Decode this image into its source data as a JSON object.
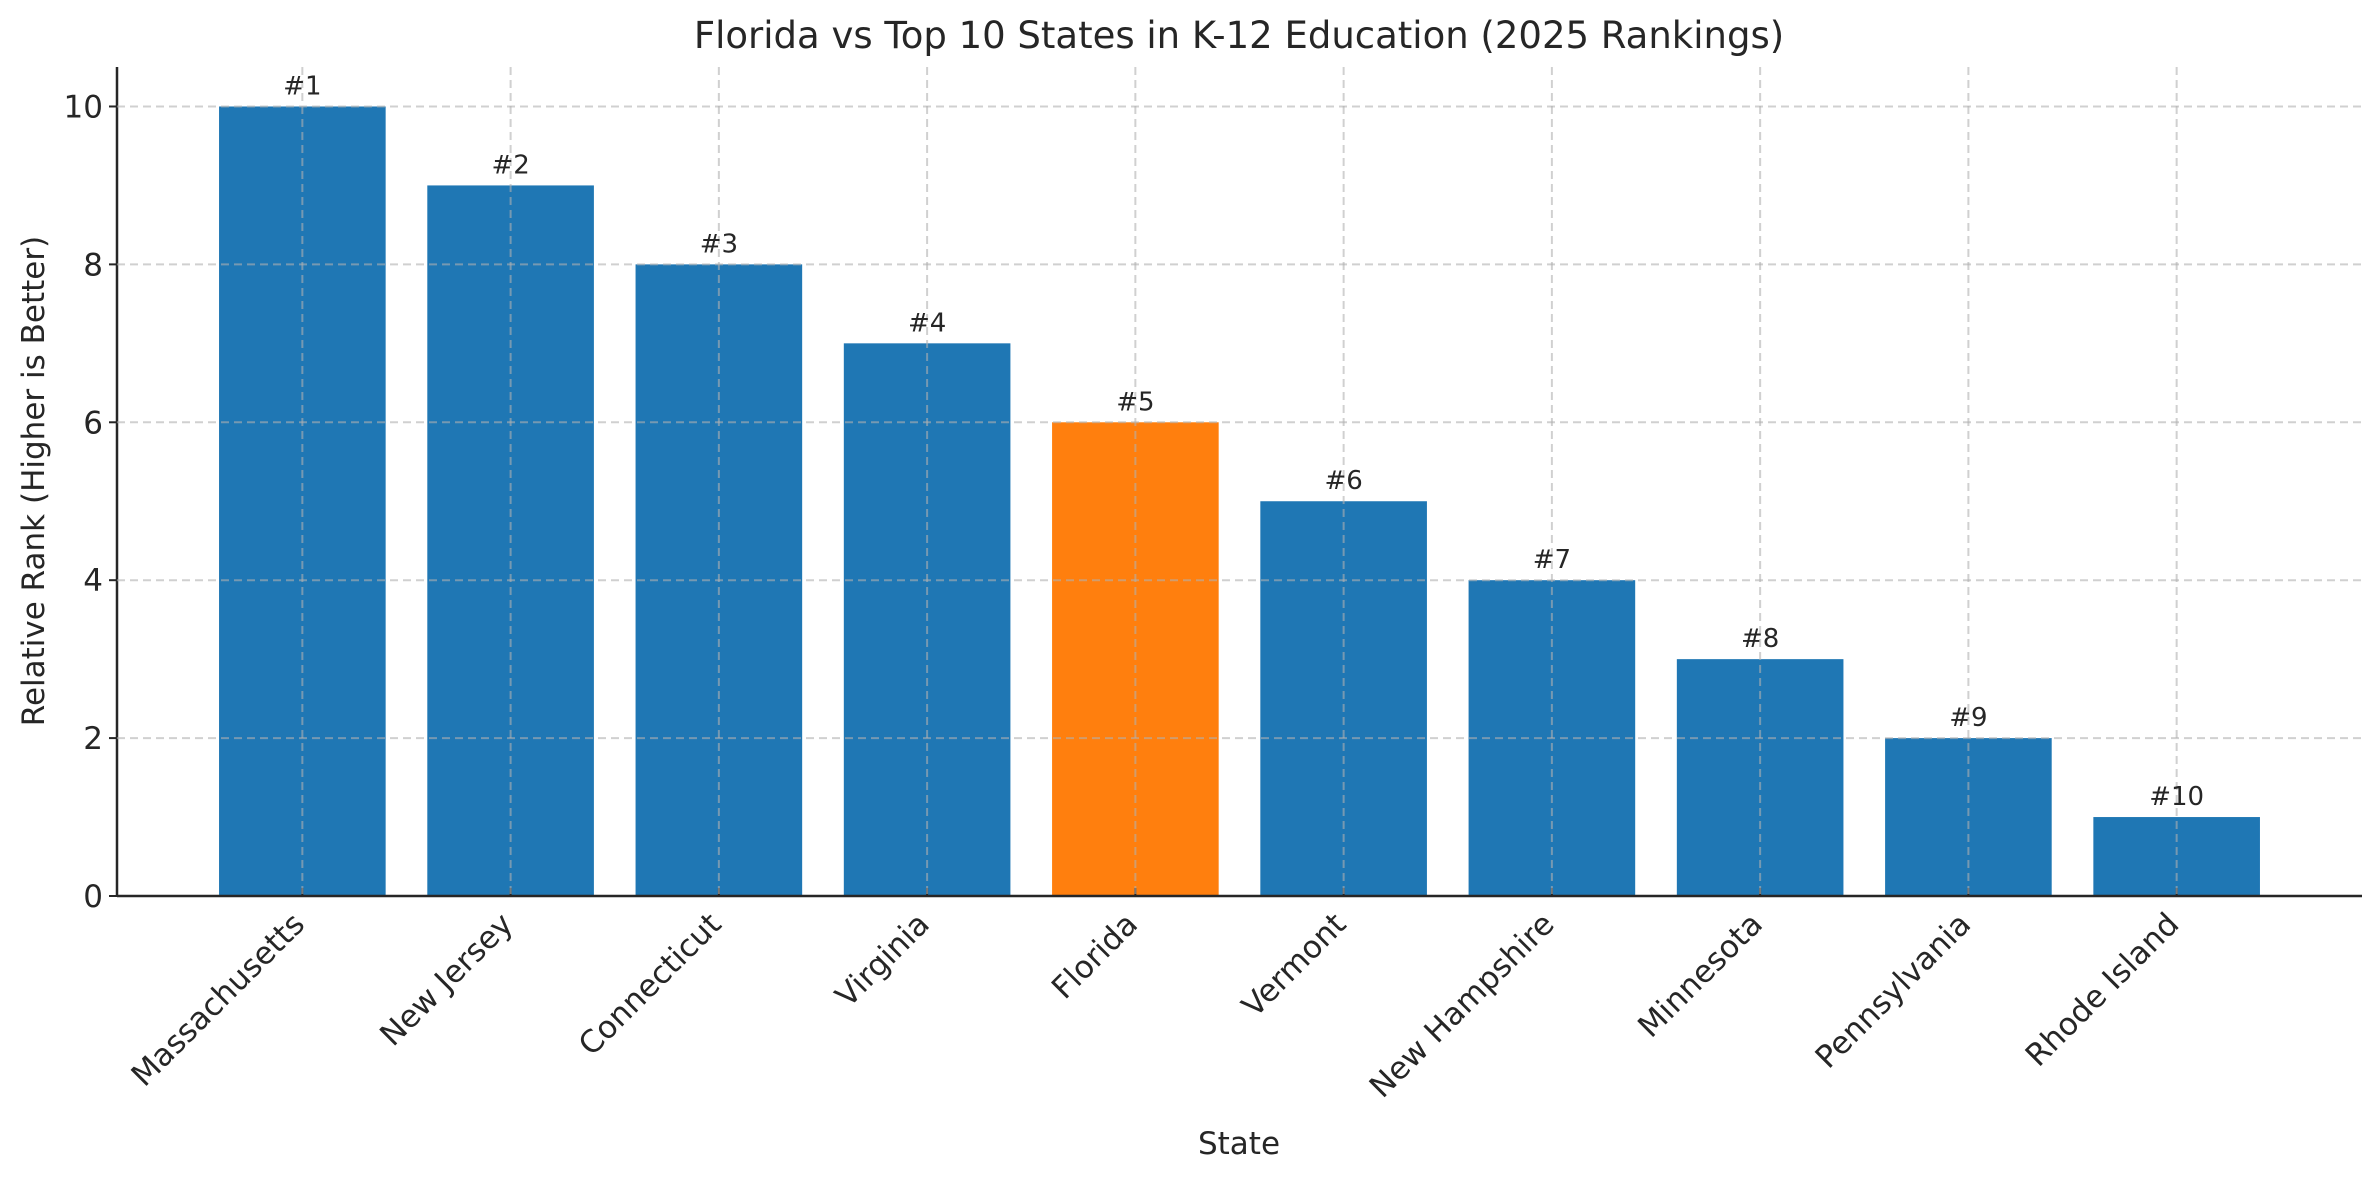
{
  "chart_data": {
    "type": "bar",
    "title": "Florida vs Top 10 States in K-12 Education (2025 Rankings)",
    "xlabel": "State",
    "ylabel": "Relative Rank (Higher is Better)",
    "categories": [
      "Massachusetts",
      "New Jersey",
      "Connecticut",
      "Virginia",
      "Florida",
      "Vermont",
      "New Hampshire",
      "Minnesota",
      "Pennsylvania",
      "Rhode Island"
    ],
    "values": [
      10,
      9,
      8,
      7,
      6,
      5,
      4,
      3,
      2,
      1
    ],
    "data_labels": [
      "#1",
      "#2",
      "#3",
      "#4",
      "#5",
      "#6",
      "#7",
      "#8",
      "#9",
      "#10"
    ],
    "colors": [
      "#1f77b4",
      "#1f77b4",
      "#1f77b4",
      "#1f77b4",
      "#ff7f0e",
      "#1f77b4",
      "#1f77b4",
      "#1f77b4",
      "#1f77b4",
      "#1f77b4"
    ],
    "highlight": "Florida",
    "ylim": [
      0,
      10.5
    ],
    "yticks": [
      0,
      2,
      4,
      6,
      8,
      10
    ],
    "grid": true,
    "grid_style": "dashed"
  }
}
